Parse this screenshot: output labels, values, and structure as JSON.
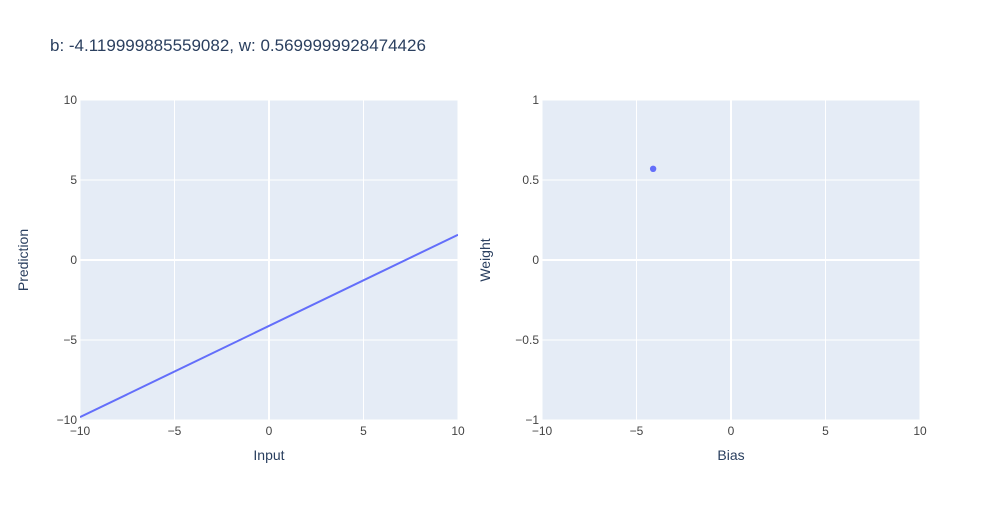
{
  "chart_data": {
    "title": "b: -4.119999885559082, w: 0.5699999928474426",
    "colors": {
      "plot_background": "#e5ecf6",
      "grid": "#ffffff",
      "series": "#636efa",
      "text": "#2a3f5f",
      "tick_text": "#444444"
    },
    "charts": [
      {
        "type": "line",
        "xlabel": "Input",
        "ylabel": "Prediction",
        "xlim": [
          -10,
          10
        ],
        "ylim": [
          -10,
          10
        ],
        "xticks": [
          -10,
          -5,
          0,
          5,
          10
        ],
        "yticks": [
          -10,
          -5,
          0,
          5,
          10
        ],
        "x_tick_labels": [
          "−10",
          "−5",
          "0",
          "5",
          "10"
        ],
        "y_tick_labels": [
          "−10",
          "−5",
          "0",
          "5",
          "10"
        ],
        "grid": true,
        "series": [
          {
            "x": [
              -10,
              10
            ],
            "y": [
              -9.82,
              1.58
            ]
          }
        ]
      },
      {
        "type": "scatter",
        "xlabel": "Bias",
        "ylabel": "Weight",
        "xlim": [
          -10,
          10
        ],
        "ylim": [
          -1,
          1
        ],
        "xticks": [
          -10,
          -5,
          0,
          5,
          10
        ],
        "yticks": [
          -1,
          -0.5,
          0,
          0.5,
          1
        ],
        "x_tick_labels": [
          "−10",
          "−5",
          "0",
          "5",
          "10"
        ],
        "y_tick_labels": [
          "−1",
          "−0.5",
          "0",
          "0.5",
          "1"
        ],
        "grid": true,
        "series": [
          {
            "x": [
              -4.12
            ],
            "y": [
              0.57
            ]
          }
        ]
      }
    ]
  }
}
